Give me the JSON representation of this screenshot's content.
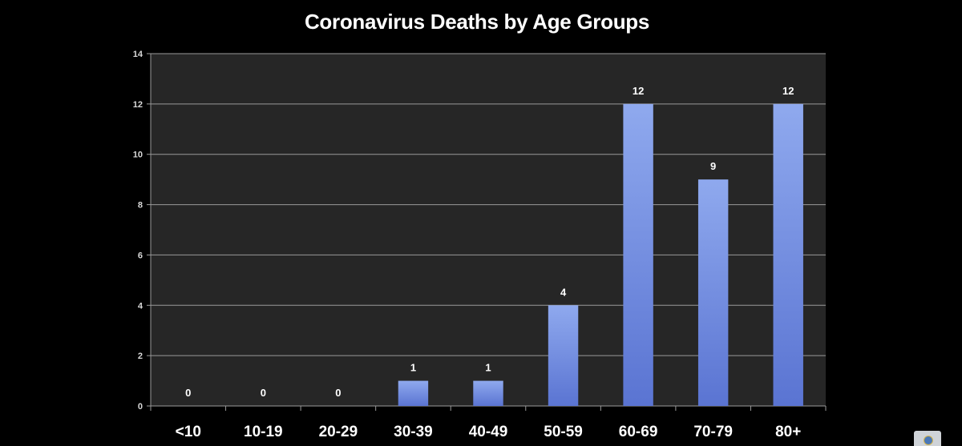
{
  "chart_data": {
    "type": "bar",
    "title": "Coronavirus Deaths by Age Groups",
    "xlabel": "",
    "ylabel": "",
    "categories": [
      "<10",
      "10-19",
      "20-29",
      "30-39",
      "40-49",
      "50-59",
      "60-69",
      "70-79",
      "80+"
    ],
    "values": [
      0,
      0,
      0,
      1,
      1,
      4,
      12,
      9,
      12
    ],
    "ylim": [
      0,
      14
    ],
    "yticks": [
      0,
      2,
      4,
      6,
      8,
      10,
      12,
      14
    ],
    "grid": true,
    "legend": "none",
    "colors": {
      "background": "#000000",
      "plot_area": "#262626",
      "bar_top": "#8fa9ee",
      "bar_bottom": "#5a74d2",
      "gridline": "#9a9a9a",
      "text": "#ffffff",
      "tick_text": "#d9d9d9"
    }
  },
  "corner_icon": "video-player-badge-icon"
}
